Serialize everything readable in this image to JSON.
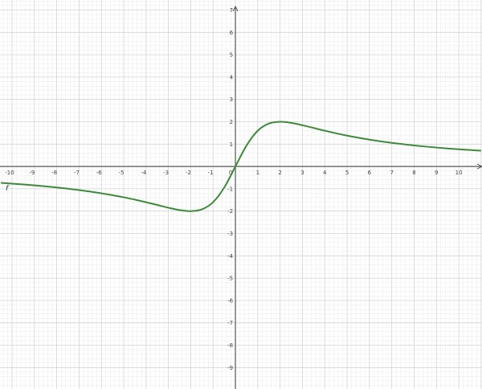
{
  "chart_data": {
    "type": "line",
    "title": "",
    "xlabel": "",
    "ylabel": "",
    "xlim": [
      -10.54,
      11.04
    ],
    "ylim": [
      -9.96,
      7.45
    ],
    "grid": true,
    "minor_grid_subdivisions": 5,
    "x_ticks": [
      "-10",
      "-9",
      "-8",
      "-7",
      "-6",
      "-5",
      "-4",
      "-3",
      "-2",
      "-1",
      "0",
      "1",
      "2",
      "3",
      "4",
      "5",
      "6",
      "7",
      "8",
      "9",
      "10"
    ],
    "y_ticks": [
      "7",
      "6",
      "5",
      "4",
      "3",
      "2",
      "1",
      "-1",
      "-2",
      "-3",
      "-4",
      "-5",
      "-6",
      "-7",
      "-8",
      "-9"
    ],
    "series": [
      {
        "name": "f",
        "color": "#3d8a3a",
        "x": [
          -10.5,
          -10,
          -9.5,
          -9,
          -8.5,
          -8,
          -7.5,
          -7,
          -6.5,
          -6,
          -5.5,
          -5,
          -4.5,
          -4,
          -3.5,
          -3,
          -2.5,
          -2,
          -1.5,
          -1,
          -0.5,
          0,
          0.5,
          1,
          1.5,
          2,
          2.5,
          3,
          3.5,
          4,
          4.5,
          5,
          5.5,
          6,
          6.5,
          7,
          7.5,
          8,
          8.5,
          9,
          9.5,
          10,
          10.5,
          11
        ],
        "y": [
          -0.735,
          -0.769,
          -0.806,
          -0.847,
          -0.892,
          -0.941,
          -0.996,
          -1.057,
          -1.124,
          -1.2,
          -1.285,
          -1.379,
          -1.485,
          -1.6,
          -1.723,
          -1.846,
          -1.951,
          -2,
          -1.92,
          -1.6,
          -0.941,
          0,
          0.941,
          1.6,
          1.92,
          2,
          1.951,
          1.846,
          1.723,
          1.6,
          1.485,
          1.379,
          1.285,
          1.2,
          1.124,
          1.057,
          0.996,
          0.941,
          0.892,
          0.847,
          0.806,
          0.769,
          0.735,
          0.704
        ]
      }
    ],
    "colors": {
      "axis": "#555555",
      "grid_major": "#d4d4d4",
      "grid_minor": "#eeeeee",
      "curve": "#3d8a3a"
    }
  }
}
